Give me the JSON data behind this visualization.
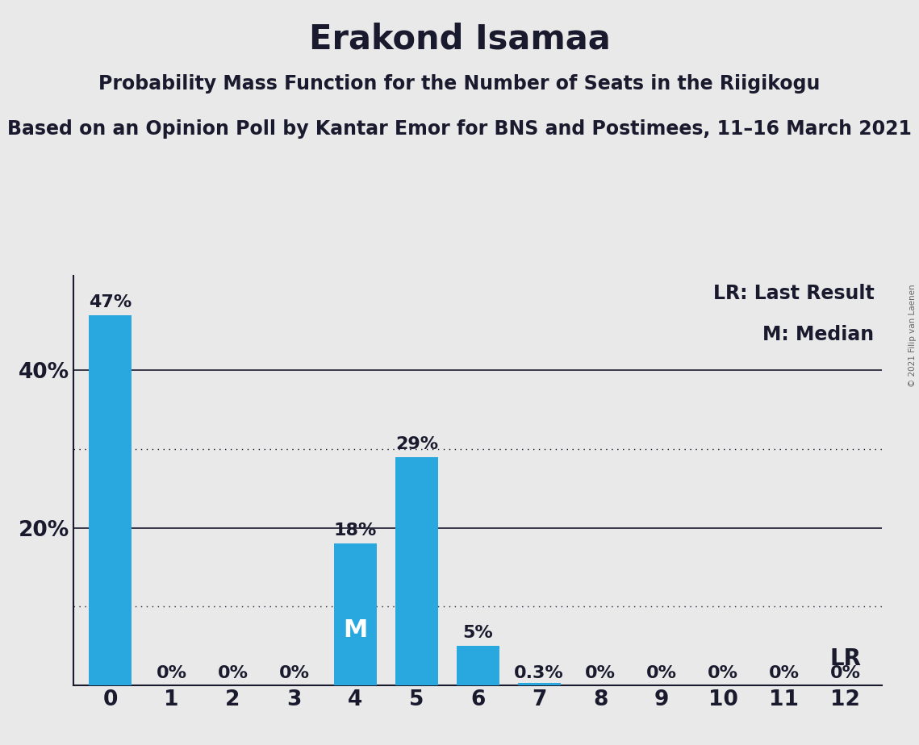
{
  "title": "Erakond Isamaa",
  "subtitle1": "Probability Mass Function for the Number of Seats in the Riigikogu",
  "subtitle2": "Based on an Opinion Poll by Kantar Emor for BNS and Postimees, 11–16 March 2021",
  "copyright": "© 2021 Filip van Laenen",
  "categories": [
    0,
    1,
    2,
    3,
    4,
    5,
    6,
    7,
    8,
    9,
    10,
    11,
    12
  ],
  "values": [
    47,
    0,
    0,
    0,
    18,
    29,
    5,
    0.3,
    0,
    0,
    0,
    0,
    0
  ],
  "bar_color": "#29a8e0",
  "background_color": "#e9e9e9",
  "solid_lines": [
    20,
    40
  ],
  "dotted_lines": [
    10,
    30
  ],
  "median_bar": 4,
  "lr_bar": 12,
  "legend_lr": "LR: Last Result",
  "legend_m": "M: Median",
  "bar_labels": [
    "47%",
    "0%",
    "0%",
    "0%",
    "18%",
    "29%",
    "5%",
    "0.3%",
    "0%",
    "0%",
    "0%",
    "0%",
    "0%"
  ],
  "ylim": [
    0,
    52
  ],
  "title_fontsize": 30,
  "subtitle_fontsize": 17,
  "axis_label_fontsize": 19,
  "bar_label_fontsize": 16,
  "text_color": "#1a1a2e"
}
